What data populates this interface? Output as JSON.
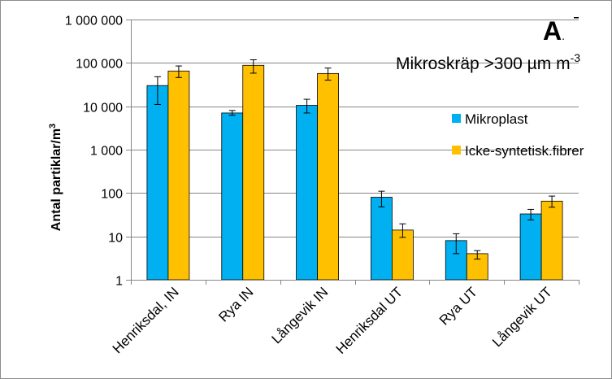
{
  "chart_data": {
    "type": "bar",
    "panel_label": "A",
    "panel_dot": ".",
    "subtitle": "Mikroskräp >300 µm m",
    "subtitle_sup": "-3",
    "ylabel": "Antal partiklar/m",
    "ylabel_sup": "3",
    "y_scale": "log",
    "ylim": [
      1,
      1000000
    ],
    "y_ticks": [
      1,
      10,
      100,
      1000,
      10000,
      100000,
      1000000
    ],
    "y_tick_labels": [
      "1",
      "10",
      "100",
      "1 000",
      "10 000",
      "100 000",
      "1 000 000"
    ],
    "grid": true,
    "legend_position": "right",
    "categories": [
      "Henriksdal, IN",
      "Rya IN",
      "Långevik IN",
      "Henriksdal UT",
      "Rya UT",
      "Långevik UT"
    ],
    "series": [
      {
        "name": "Mikroplast",
        "color": "#00b0f0",
        "values": [
          30000,
          7000,
          10500,
          80,
          8,
          33
        ],
        "error_low": [
          11000,
          6200,
          7000,
          48,
          4,
          24
        ],
        "error_high": [
          48000,
          8000,
          14500,
          110,
          11.5,
          42
        ]
      },
      {
        "name": "Icke-syntetisk.fibrer",
        "color": "#ffc000",
        "values": [
          65000,
          88000,
          57000,
          14,
          4,
          65
        ],
        "error_low": [
          46000,
          58000,
          40000,
          9.5,
          3,
          47
        ],
        "error_high": [
          85000,
          118000,
          76000,
          19.5,
          4.7,
          85
        ]
      }
    ]
  }
}
